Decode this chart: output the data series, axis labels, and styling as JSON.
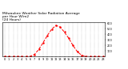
{
  "title": "Milwaukee Weather Solar Radiation Average\nper Hour W/m2\n(24 Hours)",
  "title_fontsize": 3.2,
  "hours": [
    0,
    1,
    2,
    3,
    4,
    5,
    6,
    7,
    8,
    9,
    10,
    11,
    12,
    13,
    14,
    15,
    16,
    17,
    18,
    19,
    20,
    21,
    22,
    23
  ],
  "values": [
    0,
    0,
    0,
    0,
    0,
    0,
    5,
    40,
    130,
    250,
    380,
    490,
    560,
    530,
    440,
    330,
    200,
    90,
    25,
    3,
    0,
    0,
    0,
    0
  ],
  "line_color": "red",
  "line_style": "--",
  "line_width": 0.7,
  "background_color": "#ffffff",
  "grid_color": "#888888",
  "xlim": [
    -0.5,
    23.5
  ],
  "ylim": [
    0,
    620
  ],
  "yticks": [
    100,
    200,
    300,
    400,
    500,
    600
  ],
  "ytick_labels": [
    "1\n0\n0",
    "2\n0\n0",
    "3\n0\n0",
    "4\n0\n0",
    "5\n0\n0",
    "6\n0\n0"
  ],
  "xticks": [
    0,
    1,
    2,
    3,
    4,
    5,
    6,
    7,
    8,
    9,
    10,
    11,
    12,
    13,
    14,
    15,
    16,
    17,
    18,
    19,
    20,
    21,
    22,
    23
  ],
  "tick_fontsize": 2.5,
  "marker": "o",
  "markersize": 0.8
}
